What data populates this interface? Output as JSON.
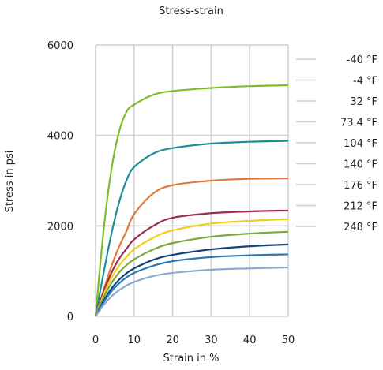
{
  "chart_data": {
    "type": "line",
    "title": "Stress-strain",
    "xlabel": "Strain in %",
    "ylabel": "Stress in psi",
    "xlim": [
      0,
      50
    ],
    "ylim": [
      0,
      6000
    ],
    "xticks": [
      0,
      10,
      20,
      30,
      40,
      50
    ],
    "yticks": [
      0,
      2000,
      4000,
      6000
    ],
    "grid": true,
    "legend_position": "right",
    "x": [
      0,
      2,
      4,
      6,
      8,
      10,
      15,
      20,
      30,
      40,
      50
    ],
    "series": [
      {
        "name": "-40 °F",
        "color": "#7dbd2a",
        "values": [
          0,
          1830,
          3190,
          4050,
          4520,
          4680,
          4900,
          4980,
          5050,
          5090,
          5110
        ]
      },
      {
        "name": "-4 °F",
        "color": "#1a8f96",
        "values": [
          0,
          920,
          1780,
          2490,
          3000,
          3300,
          3600,
          3720,
          3820,
          3860,
          3880
        ]
      },
      {
        "name": "32 °F",
        "color": "#e0783a",
        "values": [
          0,
          560,
          1080,
          1520,
          1880,
          2260,
          2720,
          2900,
          3000,
          3040,
          3050
        ]
      },
      {
        "name": "73.4 °F",
        "color": "#9b2d55",
        "values": [
          0,
          520,
          940,
          1260,
          1490,
          1700,
          2000,
          2180,
          2280,
          2320,
          2340
        ]
      },
      {
        "name": "104 °F",
        "color": "#f0cf1c",
        "values": [
          0,
          460,
          830,
          1110,
          1310,
          1480,
          1740,
          1900,
          2050,
          2110,
          2150
        ]
      },
      {
        "name": "140 °F",
        "color": "#7fa83e",
        "values": [
          0,
          400,
          720,
          960,
          1130,
          1260,
          1480,
          1620,
          1760,
          1830,
          1870
        ]
      },
      {
        "name": "176 °F",
        "color": "#14437a",
        "values": [
          0,
          330,
          600,
          800,
          950,
          1060,
          1250,
          1360,
          1480,
          1550,
          1590
        ]
      },
      {
        "name": "212 °F",
        "color": "#2b78b4",
        "values": [
          0,
          300,
          540,
          720,
          860,
          960,
          1120,
          1220,
          1310,
          1350,
          1370
        ]
      },
      {
        "name": "248 °F",
        "color": "#8aaad0",
        "values": [
          0,
          240,
          430,
          570,
          680,
          760,
          890,
          960,
          1030,
          1060,
          1080
        ]
      }
    ]
  }
}
